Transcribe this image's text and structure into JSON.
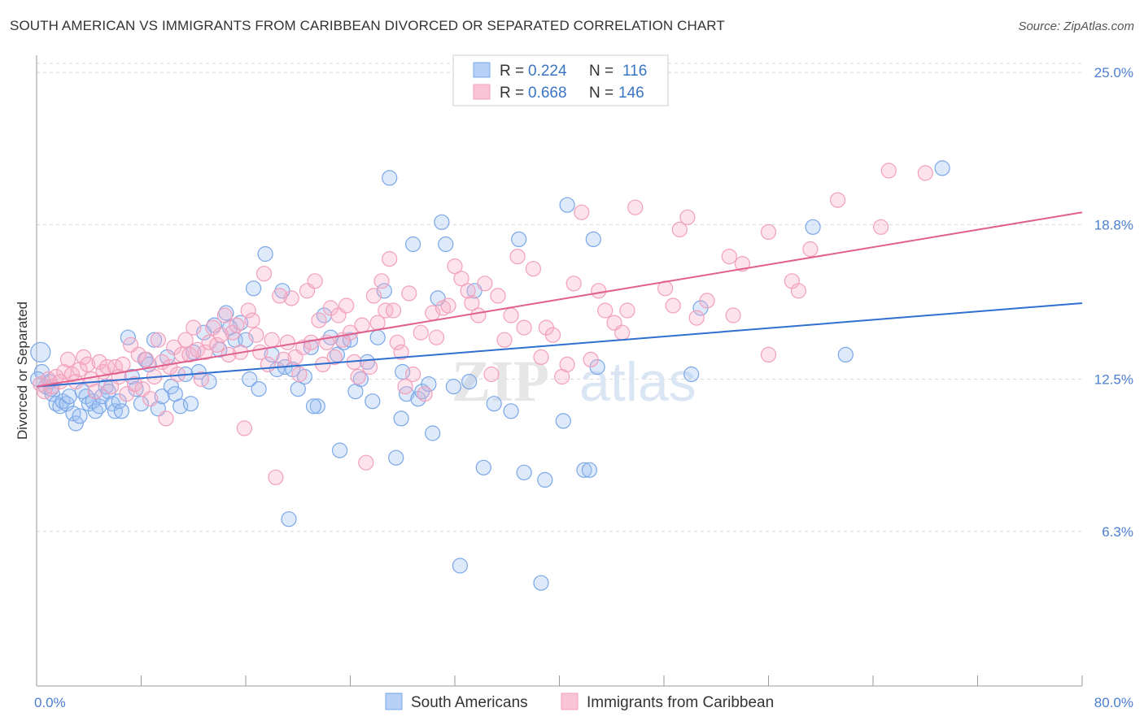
{
  "title": "SOUTH AMERICAN VS IMMIGRANTS FROM CARIBBEAN DIVORCED OR SEPARATED CORRELATION CHART",
  "source": "Source: ZipAtlas.com",
  "chart_data": {
    "type": "scatter",
    "xlabel": "",
    "ylabel": "Divorced or Separated",
    "xlim": [
      0,
      80
    ],
    "ylim": [
      0,
      25.5
    ],
    "x_tick_labels": [
      "0.0%",
      "80.0%"
    ],
    "y_ticks": [
      6.3,
      12.5,
      18.8,
      25.0
    ],
    "y_tick_labels": [
      "6.3%",
      "12.5%",
      "18.8%",
      "25.0%"
    ],
    "grid": true,
    "watermark": "ZIPatlas",
    "legend": {
      "placement": "top-center",
      "entries": [
        {
          "r_label": "R =",
          "r": "0.224",
          "n_label": "N =",
          "n": "116",
          "color": "#7aa7e8"
        },
        {
          "r_label": "R =",
          "r": "0.668",
          "n_label": "N =",
          "n": "146",
          "color": "#f2a0bb"
        }
      ]
    },
    "series": [
      {
        "name": "South Americans",
        "color": "#7aa7e8",
        "line_color": "#2f6fd0",
        "trend": [
          [
            0,
            12.2
          ],
          [
            80,
            15.6
          ]
        ],
        "points": [
          [
            0.3,
            13.6
          ],
          [
            0.4,
            12.8
          ],
          [
            0.7,
            12.2
          ],
          [
            1.0,
            12.4
          ],
          [
            1.2,
            11.9
          ],
          [
            1.5,
            11.5
          ],
          [
            1.8,
            11.4
          ],
          [
            2.0,
            11.6
          ],
          [
            2.3,
            11.5
          ],
          [
            2.5,
            11.8
          ],
          [
            2.8,
            11.1
          ],
          [
            3.0,
            10.7
          ],
          [
            3.3,
            11.0
          ],
          [
            3.5,
            12.0
          ],
          [
            3.8,
            11.8
          ],
          [
            4.0,
            11.5
          ],
          [
            4.3,
            11.6
          ],
          [
            4.5,
            11.2
          ],
          [
            4.8,
            11.4
          ],
          [
            5.0,
            11.8
          ],
          [
            5.3,
            12.2
          ],
          [
            5.5,
            12.0
          ],
          [
            5.8,
            11.5
          ],
          [
            6.0,
            11.2
          ],
          [
            6.3,
            11.6
          ],
          [
            6.5,
            11.2
          ],
          [
            7.0,
            14.2
          ],
          [
            7.3,
            12.6
          ],
          [
            7.6,
            12.1
          ],
          [
            8.0,
            11.5
          ],
          [
            8.3,
            13.3
          ],
          [
            8.6,
            13.1
          ],
          [
            9.0,
            14.1
          ],
          [
            9.3,
            11.3
          ],
          [
            9.6,
            11.8
          ],
          [
            10.0,
            13.4
          ],
          [
            10.3,
            12.2
          ],
          [
            10.6,
            11.9
          ],
          [
            11.0,
            11.4
          ],
          [
            11.4,
            12.7
          ],
          [
            11.8,
            11.5
          ],
          [
            12.0,
            13.6
          ],
          [
            12.4,
            12.8
          ],
          [
            12.8,
            14.4
          ],
          [
            13.2,
            12.4
          ],
          [
            13.6,
            14.7
          ],
          [
            14.0,
            13.7
          ],
          [
            14.5,
            15.2
          ],
          [
            14.8,
            14.6
          ],
          [
            15.2,
            14.1
          ],
          [
            15.6,
            14.8
          ],
          [
            16.0,
            14.1
          ],
          [
            16.3,
            12.5
          ],
          [
            16.6,
            16.2
          ],
          [
            17.0,
            12.1
          ],
          [
            17.5,
            17.6
          ],
          [
            18.0,
            13.5
          ],
          [
            18.4,
            12.9
          ],
          [
            18.8,
            16.1
          ],
          [
            19.0,
            13.0
          ],
          [
            19.3,
            6.8
          ],
          [
            19.6,
            12.9
          ],
          [
            20.0,
            12.1
          ],
          [
            20.5,
            12.6
          ],
          [
            21.0,
            13.8
          ],
          [
            21.5,
            11.4
          ],
          [
            22.0,
            15.1
          ],
          [
            22.5,
            14.2
          ],
          [
            23.0,
            13.5
          ],
          [
            23.2,
            9.6
          ],
          [
            23.5,
            14.0
          ],
          [
            24.0,
            14.1
          ],
          [
            24.4,
            12.0
          ],
          [
            24.8,
            12.5
          ],
          [
            25.3,
            13.2
          ],
          [
            25.7,
            11.6
          ],
          [
            26.1,
            14.2
          ],
          [
            26.6,
            16.1
          ],
          [
            27.0,
            20.7
          ],
          [
            27.5,
            9.3
          ],
          [
            27.9,
            10.9
          ],
          [
            28.3,
            11.9
          ],
          [
            28.8,
            18.0
          ],
          [
            29.2,
            11.7
          ],
          [
            29.5,
            12.0
          ],
          [
            30.0,
            12.3
          ],
          [
            30.3,
            10.3
          ],
          [
            30.7,
            15.8
          ],
          [
            31.0,
            18.9
          ],
          [
            31.3,
            18.0
          ],
          [
            31.9,
            12.2
          ],
          [
            32.4,
            4.9
          ],
          [
            33.1,
            12.4
          ],
          [
            33.5,
            16.1
          ],
          [
            34.2,
            8.9
          ],
          [
            36.3,
            11.2
          ],
          [
            36.9,
            18.2
          ],
          [
            37.3,
            8.7
          ],
          [
            38.6,
            4.2
          ],
          [
            38.9,
            8.4
          ],
          [
            40.3,
            10.8
          ],
          [
            40.6,
            19.6
          ],
          [
            41.9,
            8.8
          ],
          [
            42.3,
            8.8
          ],
          [
            42.6,
            18.2
          ],
          [
            42.9,
            13.0
          ],
          [
            50.1,
            12.7
          ],
          [
            50.8,
            15.4
          ],
          [
            59.4,
            18.7
          ],
          [
            61.9,
            13.5
          ],
          [
            69.3,
            21.1
          ],
          [
            0.1,
            12.5
          ],
          [
            1.1,
            12.1
          ],
          [
            21.2,
            11.4
          ],
          [
            28.0,
            12.8
          ],
          [
            35.0,
            11.5
          ]
        ]
      },
      {
        "name": "Immigrants from Caribbean",
        "color": "#f2a0bb",
        "line_color": "#e0608e",
        "trend": [
          [
            0,
            12.2
          ],
          [
            80,
            19.3
          ]
        ],
        "points": [
          [
            0.3,
            12.3
          ],
          [
            0.6,
            12.0
          ],
          [
            0.9,
            12.5
          ],
          [
            1.2,
            12.2
          ],
          [
            1.5,
            12.6
          ],
          [
            1.8,
            12.4
          ],
          [
            2.1,
            12.8
          ],
          [
            2.4,
            13.3
          ],
          [
            2.7,
            12.7
          ],
          [
            3.0,
            12.4
          ],
          [
            3.3,
            12.9
          ],
          [
            3.6,
            13.4
          ],
          [
            3.9,
            13.1
          ],
          [
            4.2,
            12.5
          ],
          [
            4.5,
            12.0
          ],
          [
            4.8,
            13.2
          ],
          [
            5.1,
            12.8
          ],
          [
            5.4,
            13.0
          ],
          [
            5.7,
            12.2
          ],
          [
            6.0,
            13.0
          ],
          [
            6.3,
            12.6
          ],
          [
            6.6,
            13.1
          ],
          [
            6.9,
            11.9
          ],
          [
            7.2,
            13.9
          ],
          [
            7.5,
            12.3
          ],
          [
            7.8,
            13.5
          ],
          [
            8.1,
            12.1
          ],
          [
            8.4,
            13.3
          ],
          [
            8.7,
            11.7
          ],
          [
            9.0,
            12.6
          ],
          [
            9.3,
            14.1
          ],
          [
            9.6,
            13.2
          ],
          [
            9.9,
            10.9
          ],
          [
            10.2,
            13.0
          ],
          [
            10.5,
            13.8
          ],
          [
            10.8,
            12.7
          ],
          [
            11.1,
            13.5
          ],
          [
            11.4,
            14.1
          ],
          [
            11.7,
            13.5
          ],
          [
            12.0,
            14.6
          ],
          [
            12.3,
            13.7
          ],
          [
            12.6,
            12.5
          ],
          [
            12.9,
            13.6
          ],
          [
            13.2,
            14.0
          ],
          [
            13.5,
            14.6
          ],
          [
            13.8,
            13.9
          ],
          [
            14.1,
            14.3
          ],
          [
            14.4,
            15.1
          ],
          [
            14.7,
            13.5
          ],
          [
            15.0,
            14.4
          ],
          [
            15.3,
            14.7
          ],
          [
            15.6,
            13.6
          ],
          [
            15.9,
            10.5
          ],
          [
            16.2,
            15.3
          ],
          [
            16.5,
            14.9
          ],
          [
            16.8,
            14.3
          ],
          [
            17.1,
            13.6
          ],
          [
            17.4,
            16.8
          ],
          [
            17.7,
            13.1
          ],
          [
            18.0,
            14.1
          ],
          [
            18.3,
            8.5
          ],
          [
            18.6,
            15.9
          ],
          [
            18.9,
            13.3
          ],
          [
            19.2,
            14.0
          ],
          [
            19.5,
            15.8
          ],
          [
            19.8,
            13.4
          ],
          [
            20.1,
            12.7
          ],
          [
            20.4,
            13.8
          ],
          [
            20.7,
            16.1
          ],
          [
            21.0,
            14.0
          ],
          [
            21.3,
            16.5
          ],
          [
            21.6,
            14.9
          ],
          [
            21.9,
            13.1
          ],
          [
            22.2,
            14.0
          ],
          [
            22.5,
            15.4
          ],
          [
            22.8,
            13.4
          ],
          [
            23.1,
            15.1
          ],
          [
            23.4,
            14.1
          ],
          [
            23.7,
            15.5
          ],
          [
            24.0,
            14.4
          ],
          [
            24.3,
            13.2
          ],
          [
            24.6,
            12.6
          ],
          [
            24.9,
            14.7
          ],
          [
            25.2,
            9.1
          ],
          [
            25.5,
            13.0
          ],
          [
            25.8,
            15.9
          ],
          [
            26.1,
            14.8
          ],
          [
            26.4,
            16.5
          ],
          [
            26.7,
            15.3
          ],
          [
            27.0,
            17.4
          ],
          [
            27.3,
            15.3
          ],
          [
            27.6,
            14.0
          ],
          [
            27.9,
            13.6
          ],
          [
            28.2,
            12.2
          ],
          [
            28.5,
            16.0
          ],
          [
            28.8,
            12.7
          ],
          [
            29.4,
            14.4
          ],
          [
            29.7,
            11.9
          ],
          [
            30.3,
            15.2
          ],
          [
            30.6,
            14.2
          ],
          [
            31.1,
            15.4
          ],
          [
            31.5,
            15.5
          ],
          [
            32.0,
            17.1
          ],
          [
            32.5,
            16.6
          ],
          [
            33.0,
            16.1
          ],
          [
            33.3,
            15.6
          ],
          [
            33.8,
            15.1
          ],
          [
            34.3,
            16.4
          ],
          [
            34.8,
            12.7
          ],
          [
            35.3,
            15.9
          ],
          [
            35.8,
            14.1
          ],
          [
            36.3,
            15.1
          ],
          [
            36.8,
            17.5
          ],
          [
            37.3,
            14.6
          ],
          [
            38.0,
            17.0
          ],
          [
            38.6,
            13.4
          ],
          [
            39.0,
            14.6
          ],
          [
            39.5,
            14.3
          ],
          [
            40.2,
            12.6
          ],
          [
            40.6,
            13.1
          ],
          [
            41.1,
            16.4
          ],
          [
            41.7,
            19.3
          ],
          [
            42.4,
            13.3
          ],
          [
            43.0,
            16.1
          ],
          [
            43.5,
            15.3
          ],
          [
            44.2,
            14.8
          ],
          [
            44.8,
            14.4
          ],
          [
            45.2,
            15.3
          ],
          [
            45.8,
            19.5
          ],
          [
            48.1,
            16.2
          ],
          [
            48.7,
            15.5
          ],
          [
            49.2,
            18.6
          ],
          [
            49.8,
            19.1
          ],
          [
            50.5,
            15.0
          ],
          [
            51.3,
            15.7
          ],
          [
            53.0,
            17.5
          ],
          [
            54.0,
            17.2
          ],
          [
            56.0,
            18.5
          ],
          [
            57.8,
            16.5
          ],
          [
            58.3,
            16.1
          ],
          [
            59.2,
            17.8
          ],
          [
            61.3,
            19.8
          ],
          [
            64.6,
            18.7
          ],
          [
            65.2,
            21.0
          ],
          [
            68.0,
            20.9
          ],
          [
            56.0,
            13.5
          ],
          [
            53.3,
            15.1
          ]
        ]
      }
    ]
  }
}
